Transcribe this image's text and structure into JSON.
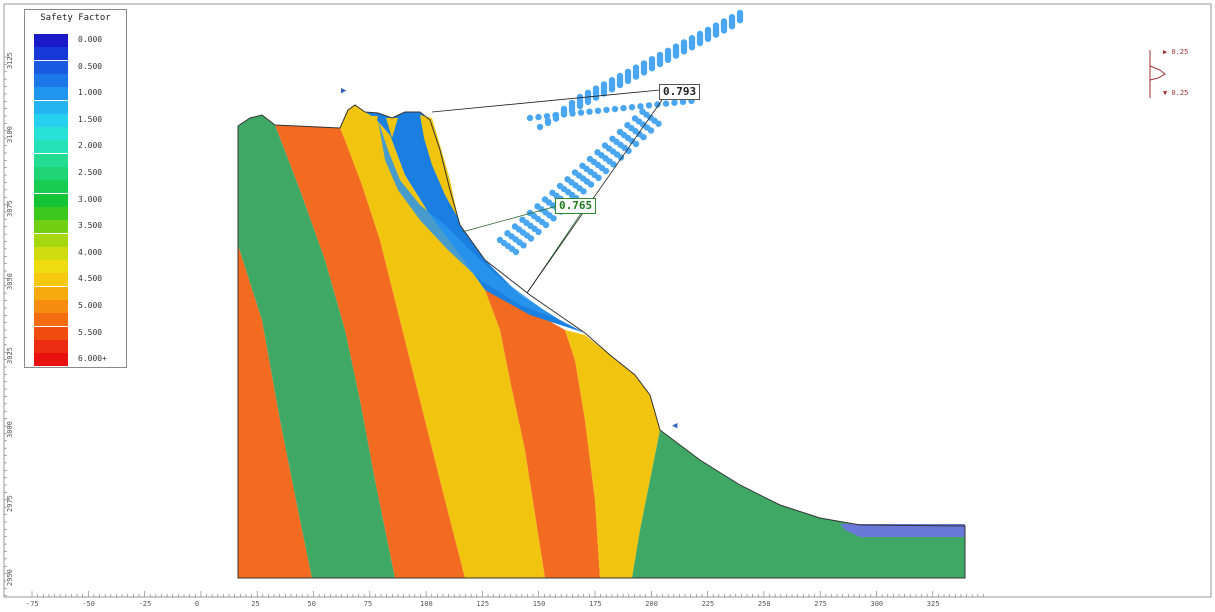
{
  "legend": {
    "title": "Safety Factor",
    "entries": [
      {
        "label": "0.000",
        "color": "#1a1ac8"
      },
      {
        "label": "",
        "color": "#1538d6"
      },
      {
        "label": "0.500",
        "color": "#1a5ae0"
      },
      {
        "label": "",
        "color": "#1c78e8"
      },
      {
        "label": "1.000",
        "color": "#1e96ee"
      },
      {
        "label": "",
        "color": "#24b4f2"
      },
      {
        "label": "1.500",
        "color": "#28d0f0"
      },
      {
        "label": "",
        "color": "#28e2d8"
      },
      {
        "label": "2.000",
        "color": "#26e2b8"
      },
      {
        "label": "",
        "color": "#22dc94"
      },
      {
        "label": "2.500",
        "color": "#1ed474"
      },
      {
        "label": "",
        "color": "#18cc52"
      },
      {
        "label": "3.000",
        "color": "#14c434"
      },
      {
        "label": "",
        "color": "#3cc81c"
      },
      {
        "label": "3.500",
        "color": "#72d014"
      },
      {
        "label": "",
        "color": "#a6d810"
      },
      {
        "label": "4.000",
        "color": "#d0dc10"
      },
      {
        "label": "",
        "color": "#eedc10"
      },
      {
        "label": "4.500",
        "color": "#f6c810"
      },
      {
        "label": "",
        "color": "#f6aa10"
      },
      {
        "label": "5.000",
        "color": "#f68c10"
      },
      {
        "label": "",
        "color": "#f46c10"
      },
      {
        "label": "5.500",
        "color": "#f04c10"
      },
      {
        "label": "",
        "color": "#ec2c10"
      },
      {
        "label": "6.000+",
        "color": "#e81010"
      }
    ]
  },
  "annotations": {
    "fs_min": "0.765",
    "fs_other": "0.793"
  },
  "scale_marker": {
    "top": "0.25",
    "bottom": "0.25"
  },
  "x_axis": {
    "ticks": [
      "-75",
      "-50",
      "-25",
      "0",
      "25",
      "50",
      "75",
      "100",
      "125",
      "150",
      "175",
      "200",
      "225",
      "250",
      "275",
      "300",
      "325"
    ]
  },
  "y_axis": {
    "ticks": [
      "3125",
      "3100",
      "3075",
      "3050",
      "3025",
      "3000",
      "2975",
      "2950"
    ]
  },
  "colors": {
    "green": "#3fa865",
    "orange": "#f36b21",
    "yellow": "#f1c40f",
    "blue": "#1a7fe0",
    "light_blue": "#5ab4f5",
    "outline": "#333333"
  }
}
